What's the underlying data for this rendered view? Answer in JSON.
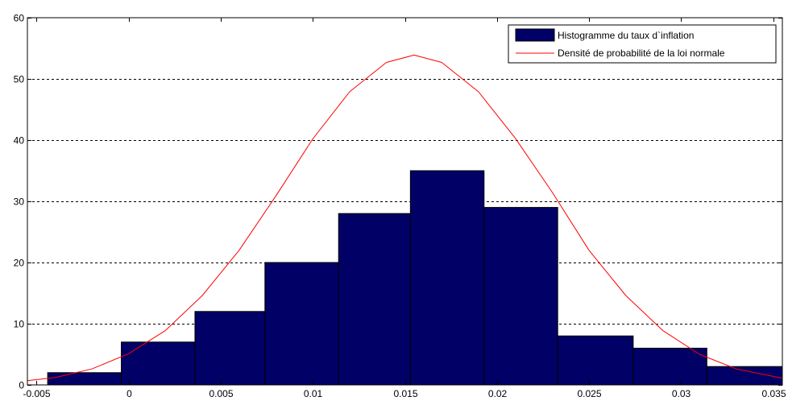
{
  "chart_data": {
    "type": "bar",
    "xlim": [
      -0.0055,
      0.0355
    ],
    "ylim": [
      0,
      60
    ],
    "x_ticks": [
      {
        "value": -0.005,
        "label": "-0.005"
      },
      {
        "value": 0,
        "label": "0"
      },
      {
        "value": 0.005,
        "label": "0.005"
      },
      {
        "value": 0.01,
        "label": "0.01"
      },
      {
        "value": 0.015,
        "label": "0.015"
      },
      {
        "value": 0.02,
        "label": "0.02"
      },
      {
        "value": 0.025,
        "label": "0.025"
      },
      {
        "value": 0.03,
        "label": "0.03"
      },
      {
        "value": 0.035,
        "label": "0.035"
      }
    ],
    "y_ticks": [
      {
        "value": 0,
        "label": "0"
      },
      {
        "value": 10,
        "label": "10"
      },
      {
        "value": 20,
        "label": "20"
      },
      {
        "value": 30,
        "label": "30"
      },
      {
        "value": 40,
        "label": "40"
      },
      {
        "value": 50,
        "label": "50"
      },
      {
        "value": 60,
        "label": "60"
      }
    ],
    "grid": {
      "y": true,
      "x": false,
      "style": "dashed"
    },
    "legend": {
      "placement": "top-right",
      "entries": [
        {
          "label": "Histogramme du taux d`inflation",
          "kind": "bar"
        },
        {
          "label": "Densité de probabilité de la loi normale",
          "kind": "line"
        }
      ]
    },
    "series": [
      {
        "kind": "histogram",
        "color": "#000066",
        "bins": [
          {
            "from": -0.0044,
            "to": -0.0004,
            "value": 2
          },
          {
            "from": -0.0004,
            "to": 0.0036,
            "value": 7
          },
          {
            "from": 0.0036,
            "to": 0.0074,
            "value": 12
          },
          {
            "from": 0.0074,
            "to": 0.0114,
            "value": 20
          },
          {
            "from": 0.0114,
            "to": 0.0153,
            "value": 28
          },
          {
            "from": 0.0153,
            "to": 0.0193,
            "value": 35
          },
          {
            "from": 0.0193,
            "to": 0.0233,
            "value": 29
          },
          {
            "from": 0.0233,
            "to": 0.0274,
            "value": 8
          },
          {
            "from": 0.0274,
            "to": 0.0314,
            "value": 6
          },
          {
            "from": 0.0314,
            "to": 0.0355,
            "value": 3
          }
        ]
      },
      {
        "kind": "line",
        "color": "#ff0000",
        "x": [
          -0.0055,
          -0.004,
          -0.002,
          0,
          0.002,
          0.004,
          0.006,
          0.008,
          0.01,
          0.012,
          0.014,
          0.0155,
          0.017,
          0.019,
          0.021,
          0.023,
          0.025,
          0.027,
          0.029,
          0.031,
          0.033,
          0.0355
        ],
        "y": [
          0.7,
          1.2,
          2.6,
          5.1,
          8.9,
          14.6,
          22.0,
          30.9,
          40.2,
          47.9,
          52.7,
          53.9,
          52.7,
          47.9,
          40.3,
          31.5,
          22.0,
          14.6,
          8.9,
          5.0,
          2.6,
          1.1
        ]
      }
    ]
  }
}
